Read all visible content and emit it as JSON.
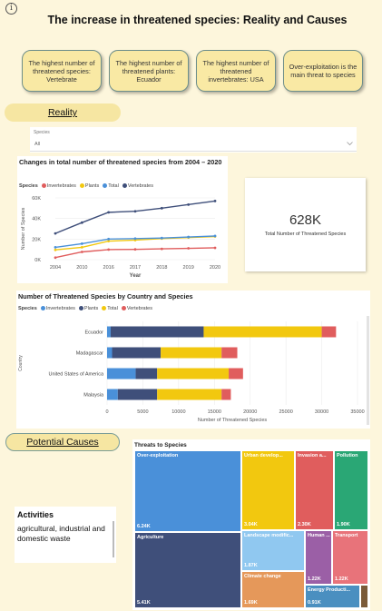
{
  "header": {
    "title": "The increase in threatened species: Reality and Causes",
    "info_icon": "info-icon"
  },
  "cards": [
    "The highest number of threatened species: Vertebrate",
    "The highest number of threatened plants: Ecuador",
    "The highest number of threatened invertebrates: USA",
    "Over-exploitation is the main threat to species"
  ],
  "sections": {
    "reality": "Reality",
    "causes": "Potential Causes"
  },
  "slicer": {
    "label": "Species",
    "value": "All",
    "icon": "chevron-down-icon"
  },
  "line_chart": {
    "title": "Changes in total number of threatened species from 2004 – 2020",
    "legend_title": "Species",
    "xlabel": "Year",
    "ylabel": "Number of Species",
    "y_ticks": [
      "0K",
      "20K",
      "40K",
      "60K"
    ],
    "colors": {
      "Invertebrates": "#e05d5d",
      "Plants": "#f2c80f",
      "Total": "#4a90d9",
      "Vertebrates": "#3f4f7a"
    }
  },
  "kpi": {
    "value": "628K",
    "label": "Total Number of Threatened Species"
  },
  "bar_chart": {
    "title": "Number of Threatened Species by Country and Species",
    "legend_title": "Species",
    "ylabel": "Country",
    "xlabel": "Number of Threatened Species",
    "x_ticks": [
      "0",
      "5000",
      "10000",
      "15000",
      "20000",
      "25000",
      "30000",
      "35000"
    ],
    "colors": {
      "Invertebrates": "#4a90d9",
      "Plants": "#3f4f7a",
      "Total": "#f2c80f",
      "Vertebrates": "#e05d5d"
    }
  },
  "treemap": {
    "title": "Threats to Species",
    "cells": [
      {
        "label": "Over-exploitation",
        "value": "6.24K",
        "color": "#4a90d9"
      },
      {
        "label": "Agriculture",
        "value": "5.41K",
        "color": "#3f4f7a"
      },
      {
        "label": "Urban develop...",
        "value": "3.04K",
        "color": "#f2c80f"
      },
      {
        "label": "Invasion a...",
        "value": "2.30K",
        "color": "#e05d5d"
      },
      {
        "label": "Pollution",
        "value": "1.90K",
        "color": "#2aa775"
      },
      {
        "label": "Landscape modific...",
        "value": "1.87K",
        "color": "#90c8f0"
      },
      {
        "label": "Human ...",
        "value": "1.22K",
        "color": "#9b5fa6"
      },
      {
        "label": "Transport",
        "value": "1.22K",
        "color": "#e8737a"
      },
      {
        "label": "Climate change",
        "value": "1.69K",
        "color": "#e5985a"
      },
      {
        "label": "Energy Producti...",
        "value": "0.91K",
        "color": "#4a8fc0"
      },
      {
        "label": "",
        "value": "",
        "color": "#7a5a3a"
      }
    ]
  },
  "activities": {
    "title": "Activities",
    "text": "agricultural, industrial and domestic waste"
  },
  "chart_data": [
    {
      "type": "line",
      "title": "Changes in total number of threatened species from 2004 – 2020",
      "xlabel": "Year",
      "ylabel": "Number of Species",
      "x": [
        "2004",
        "2010",
        "2016",
        "2017",
        "2018",
        "2019",
        "2020"
      ],
      "ylim": [
        0,
        60000
      ],
      "series": [
        {
          "name": "Invertebrates",
          "values": [
            2000,
            7500,
            9800,
            10000,
            10500,
            11000,
            11500
          ]
        },
        {
          "name": "Plants",
          "values": [
            9500,
            12000,
            18000,
            19000,
            20500,
            21500,
            22500
          ]
        },
        {
          "name": "Total",
          "values": [
            12000,
            15500,
            20000,
            20500,
            21000,
            22000,
            23000
          ]
        },
        {
          "name": "Vertebrates",
          "values": [
            25500,
            36000,
            46000,
            47000,
            50000,
            53500,
            57000
          ]
        }
      ],
      "legend": "top-left",
      "grid": true
    },
    {
      "type": "bar",
      "orientation": "horizontal",
      "stacked": true,
      "title": "Number of Threatened Species by Country and Species",
      "xlabel": "Number of Threatened Species",
      "ylabel": "Country",
      "categories": [
        "Ecuador",
        "Madagascar",
        "United States of America",
        "Malaysia"
      ],
      "xlim": [
        0,
        35000
      ],
      "series": [
        {
          "name": "Invertebrates",
          "values": [
            500,
            700,
            4000,
            1500
          ]
        },
        {
          "name": "Plants",
          "values": [
            13000,
            6800,
            3000,
            5500
          ]
        },
        {
          "name": "Total",
          "values": [
            16500,
            8500,
            10000,
            9000
          ]
        },
        {
          "name": "Vertebrates",
          "values": [
            2000,
            2200,
            2000,
            1300
          ]
        }
      ],
      "legend": "top-left",
      "grid": true
    },
    {
      "type": "treemap",
      "title": "Threats to Species",
      "categories": [
        "Over-exploitation",
        "Agriculture",
        "Urban develop...",
        "Invasion a...",
        "Pollution",
        "Landscape modific...",
        "Human ...",
        "Transport",
        "Climate change",
        "Energy Producti..."
      ],
      "values": [
        6240,
        5410,
        3040,
        2300,
        1900,
        1870,
        1220,
        1220,
        1690,
        910
      ]
    }
  ]
}
